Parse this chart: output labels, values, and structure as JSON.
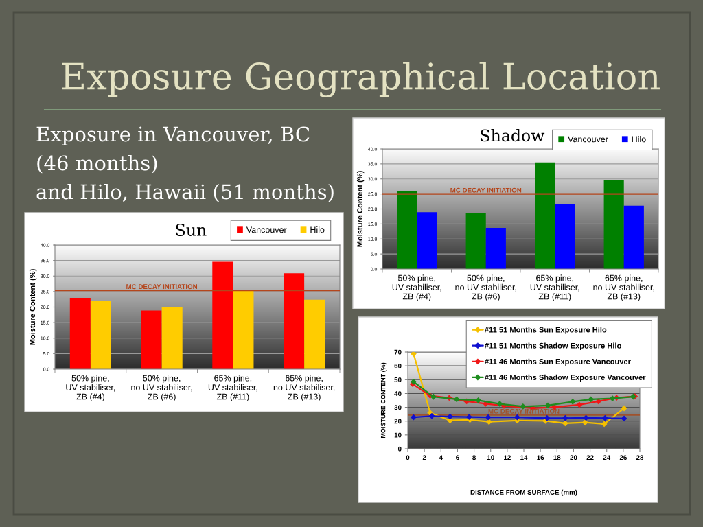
{
  "chart_data": [
    {
      "type": "other",
      "title": "Exposure Geographical Location",
      "annotations": [
        "Exposure in Vancouver, BC",
        "(46 months)",
        "and Hilo, Hawaii (51 months)"
      ]
    },
    {
      "type": "bar",
      "title": "Shadow",
      "ylabel": "Moisture Content (%)",
      "categories": [
        "50% pine,\nUV stabiliser,\nZB (#4)",
        "50% pine,\nno UV stabiliser,\nZB (#6)",
        "65% pine,\nUV stabiliser,\nZB (#11)",
        "65% pine,\nno UV stabiliser,\nZB (#13)"
      ],
      "series": [
        {
          "name": "Vancouver",
          "color": "#008000",
          "values": [
            26.0,
            18.7,
            35.5,
            29.5
          ]
        },
        {
          "name": "Hilo",
          "color": "#0000ff",
          "values": [
            18.9,
            13.7,
            21.5,
            21.1
          ]
        }
      ],
      "ylim": [
        0,
        40
      ],
      "yticks": [
        {
          "value": 0,
          "label": "0.0"
        },
        {
          "value": 5,
          "label": "5.0"
        },
        {
          "value": 10,
          "label": "10.0"
        },
        {
          "value": 15,
          "label": "15.0"
        },
        {
          "value": 20,
          "label": "20.0"
        },
        {
          "value": 25,
          "label": "25.0"
        },
        {
          "value": 30,
          "label": "30.0"
        },
        {
          "value": 35,
          "label": "35.0"
        },
        {
          "value": 40,
          "label": "40.0"
        }
      ],
      "grid": "y",
      "legend": "top right",
      "ref_lines": [
        {
          "axis": "y",
          "value": 25.0,
          "label": "MC DECAY INITIATION",
          "color": "#b5461c"
        }
      ]
    },
    {
      "type": "bar",
      "title": "Sun",
      "ylabel": "Moisture Content (%)",
      "categories": [
        "50% pine,\nUV stabiliser,\nZB (#4)",
        "50% pine,\nno UV stabiliser,\nZB (#6)",
        "65% pine,\nUV stabiliser,\nZB (#11)",
        "65% pine,\nno UV stabiliser,\nZB (#13)"
      ],
      "series": [
        {
          "name": "Vancouver",
          "color": "#ff0000",
          "values": [
            22.9,
            18.9,
            34.6,
            30.9
          ]
        },
        {
          "name": "Hilo",
          "color": "#ffcc00",
          "values": [
            21.9,
            20.0,
            25.4,
            22.4
          ]
        }
      ],
      "ylim": [
        0,
        40
      ],
      "yticks": [
        {
          "value": 0,
          "label": "0.0"
        },
        {
          "value": 5,
          "label": "5.0"
        },
        {
          "value": 10,
          "label": "10.0"
        },
        {
          "value": 15,
          "label": "15.0"
        },
        {
          "value": 20,
          "label": "20.0"
        },
        {
          "value": 25,
          "label": "25.0"
        },
        {
          "value": 30,
          "label": "30.0"
        },
        {
          "value": 35,
          "label": "35.0"
        },
        {
          "value": 40,
          "label": "40.0"
        }
      ],
      "grid": "y",
      "legend": "top right",
      "ref_lines": [
        {
          "axis": "y",
          "value": 25.4,
          "label": "MC DECAY INITIATION",
          "color": "#b5461c"
        }
      ]
    },
    {
      "type": "line",
      "xlabel": "DISTANCE FROM SURFACE (mm)",
      "ylabel": "MOISTURE CONTENT (%)",
      "series": [
        {
          "name": "#11 51 Months Sun Exposure Hilo",
          "color": "#f5c000",
          "x": [
            0.7,
            2.7,
            5.1,
            7.5,
            9.8,
            13.2,
            16.6,
            19.0,
            21.4,
            23.7,
            26.1
          ],
          "values": [
            68.7,
            26.0,
            20.5,
            20.9,
            19.5,
            20.4,
            20.2,
            18.4,
            19.0,
            17.9,
            29.3
          ]
        },
        {
          "name": "#11 51 Months Shadow Exposure Hilo",
          "color": "#1010d0",
          "x": [
            0.7,
            2.9,
            5.1,
            7.4,
            9.7,
            13.2,
            16.8,
            19.0,
            21.5,
            23.8,
            26.1
          ],
          "values": [
            22.8,
            23.7,
            23.3,
            23.0,
            22.8,
            22.8,
            22.2,
            22.2,
            22.4,
            22.2,
            21.9
          ]
        },
        {
          "name": "#11 46 Months Sun Exposure Vancouver",
          "color": "#f01818",
          "x": [
            0.6,
            2.7,
            5.0,
            7.1,
            9.4,
            11.6,
            15.1,
            17.7,
            20.7,
            23.0,
            25.2,
            27.4
          ],
          "values": [
            46.7,
            38.4,
            36.8,
            34.3,
            32.6,
            31.1,
            29.3,
            30.1,
            31.8,
            34.3,
            36.9,
            37.9
          ]
        },
        {
          "name": "#11 46 Months Shadow Exposure Vancouver",
          "color": "#1e8c1e",
          "x": [
            0.7,
            3.1,
            5.9,
            8.5,
            11.1,
            13.9,
            16.9,
            19.9,
            22.1,
            24.7,
            27.2
          ],
          "values": [
            48.5,
            37.6,
            35.8,
            35.1,
            32.5,
            30.6,
            31.3,
            34.1,
            35.8,
            36.4,
            37.7
          ]
        }
      ],
      "xlim": [
        0,
        28
      ],
      "xticks": [
        0,
        2,
        4,
        6,
        8,
        10,
        12,
        14,
        16,
        18,
        20,
        22,
        24,
        26,
        28
      ],
      "ylim": [
        0,
        70
      ],
      "yticks": [
        0,
        10,
        20,
        30,
        40,
        50,
        60,
        70
      ],
      "grid": "y",
      "legend": "top right",
      "marker": "diamond",
      "line_style": "solid",
      "ref_lines": [
        {
          "axis": "y",
          "value": 24.5,
          "label": "MC DECAY INITIATION",
          "color": "#a0522d"
        }
      ]
    }
  ]
}
